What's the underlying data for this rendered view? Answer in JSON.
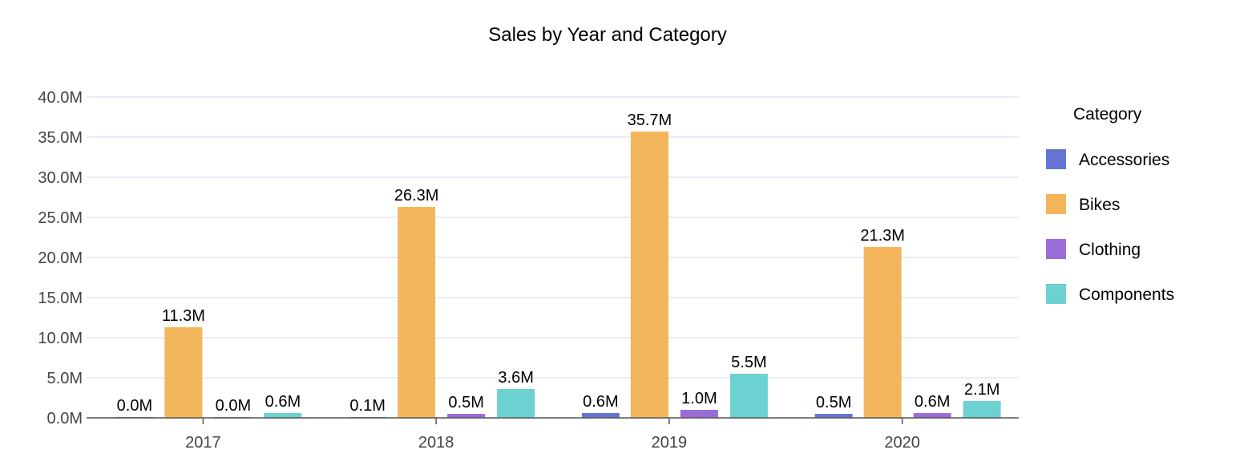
{
  "chart_data": {
    "type": "bar",
    "title": "Sales by Year and Category",
    "xlabel": "",
    "ylabel": "",
    "categories": [
      "2017",
      "2018",
      "2019",
      "2020"
    ],
    "ylim": [
      0,
      40
    ],
    "y_unit_suffix": "M",
    "yticks": [
      "0.0M",
      "5.0M",
      "10.0M",
      "15.0M",
      "20.0M",
      "25.0M",
      "30.0M",
      "35.0M",
      "40.0M"
    ],
    "ytick_values": [
      0,
      5,
      10,
      15,
      20,
      25,
      30,
      35,
      40
    ],
    "grid": true,
    "legend": {
      "title": "Category",
      "position": "right"
    },
    "series": [
      {
        "name": "Accessories",
        "color": "#6675d4",
        "values": [
          0.02,
          0.1,
          0.6,
          0.5
        ],
        "labels": [
          "0.0M",
          "0.1M",
          "0.6M",
          "0.5M"
        ]
      },
      {
        "name": "Bikes",
        "color": "#f4b65c",
        "values": [
          11.3,
          26.3,
          35.7,
          21.3
        ],
        "labels": [
          "11.3M",
          "26.3M",
          "35.7M",
          "21.3M"
        ]
      },
      {
        "name": "Clothing",
        "color": "#9a6cd8",
        "values": [
          0.02,
          0.5,
          1.0,
          0.6
        ],
        "labels": [
          "0.0M",
          "0.5M",
          "1.0M",
          "0.6M"
        ]
      },
      {
        "name": "Components",
        "color": "#6bd1d1",
        "values": [
          0.6,
          3.6,
          5.5,
          2.1
        ],
        "labels": [
          "0.6M",
          "3.6M",
          "5.5M",
          "2.1M"
        ]
      }
    ],
    "colors": {
      "grid": "#e3e6f4",
      "axis": "#555555"
    }
  }
}
